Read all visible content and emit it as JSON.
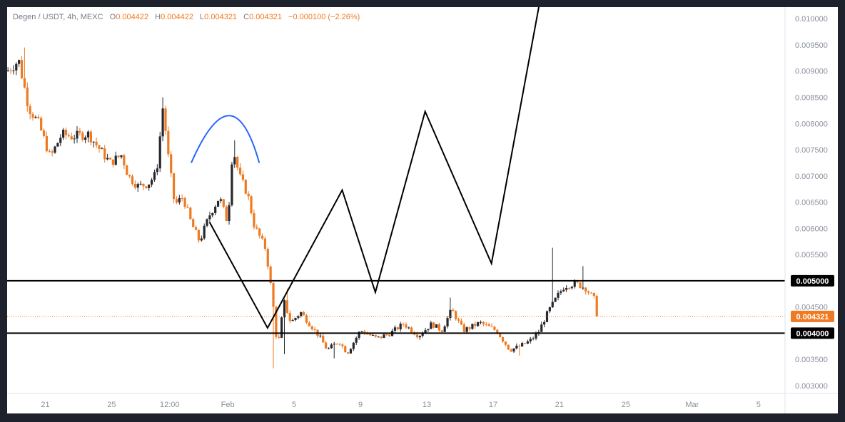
{
  "legend": {
    "symbol": "Degen / USDT, 4h, MEXC",
    "o_key": "O",
    "o": "0.004422",
    "h_key": "H",
    "h": "0.004422",
    "l_key": "L",
    "l": "0.004321",
    "c_key": "C",
    "c": "0.004321",
    "change": "−0.000100 (−2.26%)"
  },
  "colors": {
    "up": "#26282e",
    "down": "#ef7a21",
    "arc": "#2962ff",
    "line": "#000000",
    "current": "#ef7a21"
  },
  "chart_data": {
    "type": "candlestick",
    "ylim": [
      0.00285,
      0.01022
    ],
    "y_ticks": [
      "0.010000",
      "0.009500",
      "0.009000",
      "0.008500",
      "0.008000",
      "0.007500",
      "0.007000",
      "0.006500",
      "0.006000",
      "0.005500",
      "0.005000",
      "0.004500",
      "0.004000",
      "0.003500",
      "0.003000"
    ],
    "x_ticks": [
      {
        "label": "21",
        "day": 21
      },
      {
        "label": "25",
        "day": 25
      },
      {
        "label": "12:00",
        "day": 28.5
      },
      {
        "label": "Feb",
        "day": 32
      },
      {
        "label": "5",
        "day": 36
      },
      {
        "label": "9",
        "day": 40
      },
      {
        "label": "13",
        "day": 44
      },
      {
        "label": "17",
        "day": 48
      },
      {
        "label": "21",
        "day": 52
      },
      {
        "label": "25",
        "day": 56
      },
      {
        "label": "Mar",
        "day": 60
      },
      {
        "label": "5",
        "day": 64
      }
    ],
    "day_range": [
      18.7,
      65.6
    ],
    "horizontal_levels": [
      {
        "value": 0.005,
        "label": "0.005000"
      },
      {
        "value": 0.004,
        "label": "0.004000"
      }
    ],
    "current_price": {
      "value": 0.004321,
      "label": "0.004321"
    },
    "arc_annotation": {
      "day_start": 29.8,
      "day_peak": 32.3,
      "day_end": 33.9,
      "price_base": 0.00725,
      "price_peak": 0.00815
    },
    "projection_path": [
      [
        30.9,
        0.00612
      ],
      [
        34.4,
        0.0041
      ],
      [
        38.9,
        0.00673
      ],
      [
        40.9,
        0.00478
      ],
      [
        43.9,
        0.00823
      ],
      [
        47.9,
        0.00533
      ],
      [
        50.8,
        0.0103
      ]
    ],
    "price_anchors": [
      [
        18.7,
        0.009
      ],
      [
        19.4,
        0.0092
      ],
      [
        20.0,
        0.0083
      ],
      [
        20.6,
        0.008
      ],
      [
        21.3,
        0.00735
      ],
      [
        22.0,
        0.0078
      ],
      [
        22.6,
        0.00775
      ],
      [
        23.6,
        0.0078
      ],
      [
        24.3,
        0.0075
      ],
      [
        24.9,
        0.00725
      ],
      [
        25.6,
        0.0074
      ],
      [
        26.0,
        0.007
      ],
      [
        26.6,
        0.0068
      ],
      [
        27.2,
        0.00685
      ],
      [
        27.7,
        0.00705
      ],
      [
        28.1,
        0.00835
      ],
      [
        28.4,
        0.0074
      ],
      [
        28.8,
        0.00645
      ],
      [
        29.3,
        0.0066
      ],
      [
        29.8,
        0.0061
      ],
      [
        30.3,
        0.00575
      ],
      [
        30.9,
        0.00625
      ],
      [
        31.5,
        0.0066
      ],
      [
        32.0,
        0.0061
      ],
      [
        32.3,
        0.00755
      ],
      [
        32.7,
        0.007
      ],
      [
        33.2,
        0.00665
      ],
      [
        33.6,
        0.00605
      ],
      [
        34.3,
        0.0056
      ],
      [
        34.7,
        0.00465
      ],
      [
        35.0,
        0.0037
      ],
      [
        35.4,
        0.0046
      ],
      [
        35.8,
        0.0042
      ],
      [
        36.4,
        0.0044
      ],
      [
        37.0,
        0.00415
      ],
      [
        37.5,
        0.00395
      ],
      [
        38.0,
        0.00368
      ],
      [
        38.7,
        0.00385
      ],
      [
        39.2,
        0.00362
      ],
      [
        40.0,
        0.00405
      ],
      [
        41.0,
        0.0039
      ],
      [
        41.8,
        0.004
      ],
      [
        42.6,
        0.00418
      ],
      [
        43.5,
        0.00395
      ],
      [
        44.3,
        0.00418
      ],
      [
        44.9,
        0.00405
      ],
      [
        45.5,
        0.00445
      ],
      [
        46.2,
        0.00405
      ],
      [
        47.2,
        0.0042
      ],
      [
        48.2,
        0.00405
      ],
      [
        49.0,
        0.00368
      ],
      [
        49.6,
        0.00375
      ],
      [
        50.2,
        0.00385
      ],
      [
        50.7,
        0.004
      ],
      [
        51.3,
        0.0044
      ],
      [
        51.9,
        0.00472
      ],
      [
        52.3,
        0.0049
      ],
      [
        53.0,
        0.00495
      ],
      [
        53.6,
        0.00485
      ],
      [
        54.1,
        0.00465
      ],
      [
        54.4,
        0.00432
      ]
    ],
    "price_lows": [
      [
        34.8,
        0.00333
      ],
      [
        35.5,
        0.0036
      ],
      [
        38.5,
        0.00352
      ],
      [
        49.5,
        0.00357
      ],
      [
        51.5,
        0.00468
      ]
    ],
    "price_highs": [
      [
        19.7,
        0.00945
      ],
      [
        28.1,
        0.0085
      ],
      [
        32.4,
        0.00768
      ],
      [
        35.6,
        0.00485
      ],
      [
        45.4,
        0.00468
      ],
      [
        51.5,
        0.00563
      ],
      [
        53.4,
        0.00528
      ]
    ]
  }
}
